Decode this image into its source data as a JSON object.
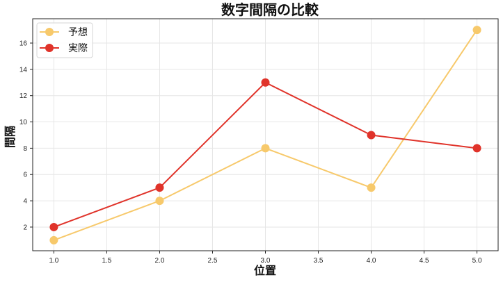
{
  "chart_data": {
    "type": "line",
    "title": "数字間隔の比較",
    "xlabel": "位置",
    "ylabel": "間隔",
    "x": [
      1,
      2,
      3,
      4,
      5
    ],
    "series": [
      {
        "name": "予想",
        "values": [
          1,
          4,
          8,
          5,
          17
        ],
        "color": "#f7c96b"
      },
      {
        "name": "実際",
        "values": [
          2,
          5,
          13,
          9,
          8
        ],
        "color": "#e0332a"
      }
    ],
    "xlim": [
      0.8,
      5.2
    ],
    "ylim": [
      0.2,
      17.85
    ],
    "xticks": [
      "1.0",
      "1.5",
      "2.0",
      "2.5",
      "3.0",
      "3.5",
      "4.0",
      "4.5",
      "5.0"
    ],
    "yticks": [
      "2",
      "4",
      "6",
      "8",
      "10",
      "12",
      "14",
      "16"
    ],
    "grid": true,
    "legend_position": "upper left"
  }
}
